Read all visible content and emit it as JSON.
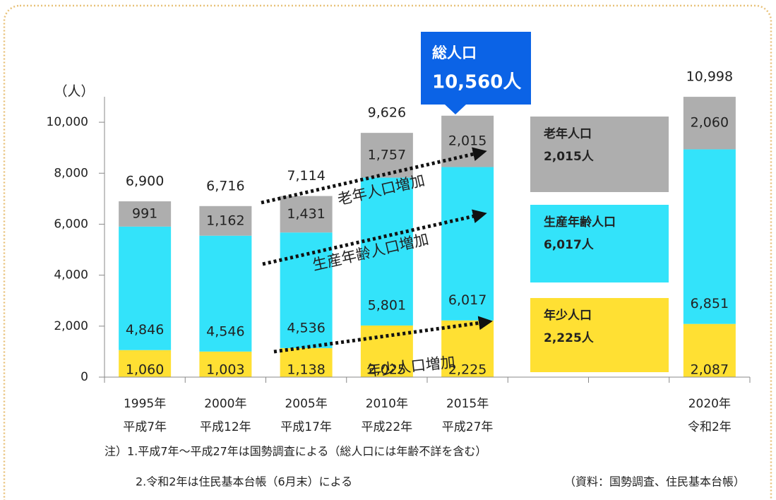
{
  "chart_data": {
    "type": "stacked_bar",
    "y_unit": "（人）",
    "categories": [
      [
        "1995年",
        "平成7年"
      ],
      [
        "2000年",
        "平成12年"
      ],
      [
        "2005年",
        "平成17年"
      ],
      [
        "2010年",
        "平成22年"
      ],
      [
        "2015年",
        "平成27年"
      ],
      null,
      null,
      [
        "2020年",
        "令和2年"
      ]
    ],
    "series": [
      {
        "name": "年少人口",
        "note": "2,225人",
        "color": "#ffe033",
        "values": [
          1060,
          1003,
          1138,
          2025,
          2225,
          null,
          null,
          2087
        ],
        "value_labels": [
          "1,060",
          "1,003",
          "1,138",
          "2,025",
          "2,225",
          null,
          null,
          "2,087"
        ]
      },
      {
        "name": "生産年齢人口",
        "note": "6,017人",
        "color": "#33e3fa",
        "values": [
          4846,
          4546,
          4536,
          5801,
          6017,
          null,
          null,
          6851
        ],
        "value_labels": [
          "4,846",
          "4,546",
          "4,536",
          "5,801",
          "6,017",
          null,
          null,
          "6,851"
        ]
      },
      {
        "name": "老年人口",
        "note": "2,015人",
        "color": "#aeaeae",
        "values": [
          991,
          1162,
          1431,
          1757,
          2015,
          null,
          null,
          2060
        ],
        "value_labels": [
          "991",
          "1,162",
          "1,431",
          "1,757",
          "2,015",
          null,
          null,
          "2,060"
        ]
      }
    ],
    "totals": [
      6900,
      6716,
      7114,
      9626,
      null,
      null,
      null,
      10998
    ],
    "total_labels": [
      "6,900",
      "6,716",
      "7,114",
      "9,626",
      null,
      null,
      null,
      "10,998"
    ],
    "callout": [
      "総人口",
      "10,560人"
    ],
    "annotations": [
      "老年人口増加",
      "生産年齢人口増加",
      "年少人口増加"
    ],
    "ylim": [
      0,
      11000
    ],
    "yticks": [
      0,
      {
        "value": 2000,
        "label": "2,000"
      },
      {
        "value": 4000,
        "label": "4,000"
      },
      {
        "value": 6000,
        "label": "6,000"
      },
      {
        "value": 8000,
        "label": "8,000"
      },
      {
        "value": 10000,
        "label": "10,000"
      }
    ],
    "notes": [
      "注）1.平成7年～平成27年は国勢調査による（総人口には年齢不詳を含む）",
      "2.令和2年は住民基本台帳（6月末）による",
      "（資料：国勢調査、住民基本台帳）"
    ]
  }
}
